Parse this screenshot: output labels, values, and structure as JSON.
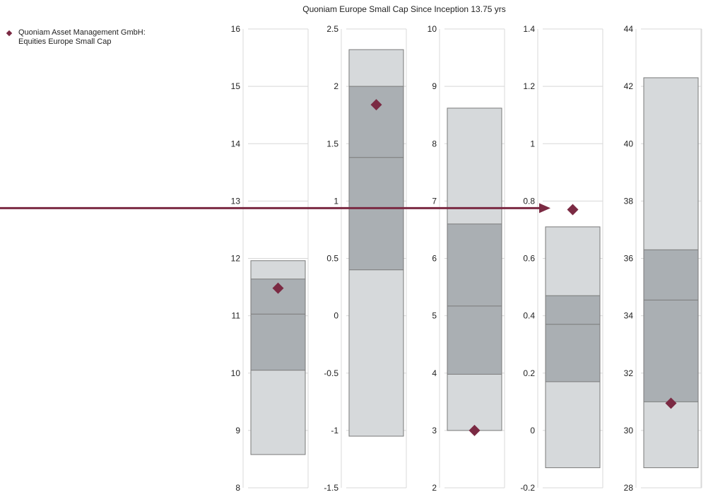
{
  "title": "Quoniam Europe Small Cap Since Inception 13.75 yrs",
  "legend": {
    "items": [
      {
        "label_line1": "Quoniam Asset Management GmbH:",
        "label_line2": "Equities Europe Small Cap",
        "color": "#7b2a43"
      }
    ]
  },
  "chart_data": {
    "type": "box",
    "title": "Quoniam Europe Small Cap Since Inception 13.75 yrs",
    "colors": {
      "outer_band": "#d6d9db",
      "inner_band": "#aaafb3",
      "band_border": "#7a7a7a",
      "grid": "#d8d8d8",
      "marker": "#7b2a43",
      "arrow": "#7b2a43"
    },
    "panels": [
      {
        "ylim": [
          8,
          16
        ],
        "ticks": [
          "8",
          "9",
          "10",
          "11",
          "12",
          "13",
          "14",
          "15",
          "16"
        ],
        "percentile_95": 11.96,
        "percentile_75": 11.64,
        "median": 11.03,
        "percentile_25": 10.05,
        "percentile_5": 8.58,
        "manager_value": 11.48
      },
      {
        "ylim": [
          -1.5,
          2.5
        ],
        "ticks": [
          "-1.5",
          "-1",
          "-0.5",
          "0",
          "0.5",
          "1",
          "1.5",
          "2",
          "2.5"
        ],
        "percentile_95": 2.32,
        "percentile_75": 2.0,
        "median": 1.38,
        "percentile_25": 0.4,
        "percentile_5": -1.05,
        "manager_value": 1.84
      },
      {
        "ylim": [
          2,
          10
        ],
        "ticks": [
          "2",
          "3",
          "4",
          "5",
          "6",
          "7",
          "8",
          "9",
          "10"
        ],
        "percentile_95": 8.62,
        "percentile_75": 6.6,
        "median": 5.17,
        "percentile_25": 3.98,
        "percentile_5": 3.0,
        "manager_value": 3.0
      },
      {
        "ylim": [
          -0.2,
          1.4
        ],
        "ticks": [
          "-0.2",
          "0",
          "0.2",
          "0.4",
          "0.6",
          "0.8",
          "1",
          "1.2",
          "1.4"
        ],
        "percentile_95": 0.71,
        "percentile_75": 0.47,
        "median": 0.37,
        "percentile_25": 0.17,
        "percentile_5": -0.13,
        "manager_value": 0.77
      },
      {
        "ylim": [
          28,
          44
        ],
        "ticks": [
          "28",
          "30",
          "32",
          "34",
          "36",
          "38",
          "40",
          "42",
          "44"
        ],
        "percentile_95": 42.3,
        "percentile_75": 36.3,
        "median": 34.55,
        "percentile_25": 31.0,
        "percentile_5": 28.7,
        "manager_value": 30.95
      }
    ],
    "annotation": {
      "type": "arrow",
      "y_value": 0.8,
      "target_panel": 3
    }
  }
}
